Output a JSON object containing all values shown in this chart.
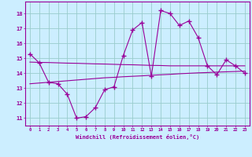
{
  "hours": [
    0,
    1,
    2,
    3,
    4,
    5,
    6,
    7,
    8,
    9,
    10,
    11,
    12,
    13,
    14,
    15,
    16,
    17,
    18,
    19,
    20,
    21,
    22,
    23
  ],
  "main_line": [
    15.3,
    14.7,
    13.4,
    13.3,
    12.6,
    11.0,
    11.1,
    11.7,
    12.9,
    13.1,
    15.2,
    16.9,
    17.4,
    13.8,
    18.2,
    18.0,
    17.2,
    17.5,
    16.4,
    14.5,
    13.9,
    14.9,
    14.5,
    14.0
  ],
  "trend_lower": [
    13.3,
    13.35,
    13.4,
    13.45,
    13.5,
    13.55,
    13.6,
    13.65,
    13.7,
    13.73,
    13.77,
    13.8,
    13.83,
    13.87,
    13.9,
    13.93,
    13.97,
    14.0,
    14.03,
    14.05,
    14.08,
    14.1,
    14.12,
    14.15
  ],
  "trend_upper": [
    14.75,
    14.73,
    14.72,
    14.7,
    14.68,
    14.67,
    14.65,
    14.63,
    14.62,
    14.6,
    14.58,
    14.57,
    14.55,
    14.53,
    14.52,
    14.5,
    14.5,
    14.5,
    14.5,
    14.5,
    14.5,
    14.5,
    14.5,
    14.5
  ],
  "bg_color": "#cceeff",
  "line_color": "#990099",
  "grid_color": "#99cccc",
  "xlabel": "Windchill (Refroidissement éolien,°C)",
  "ylim": [
    10.5,
    18.8
  ],
  "xlim": [
    -0.5,
    23.5
  ],
  "yticks": [
    11,
    12,
    13,
    14,
    15,
    16,
    17,
    18
  ],
  "xticks": [
    0,
    1,
    2,
    3,
    4,
    5,
    6,
    7,
    8,
    9,
    10,
    11,
    12,
    13,
    14,
    15,
    16,
    17,
    18,
    19,
    20,
    21,
    22,
    23
  ]
}
